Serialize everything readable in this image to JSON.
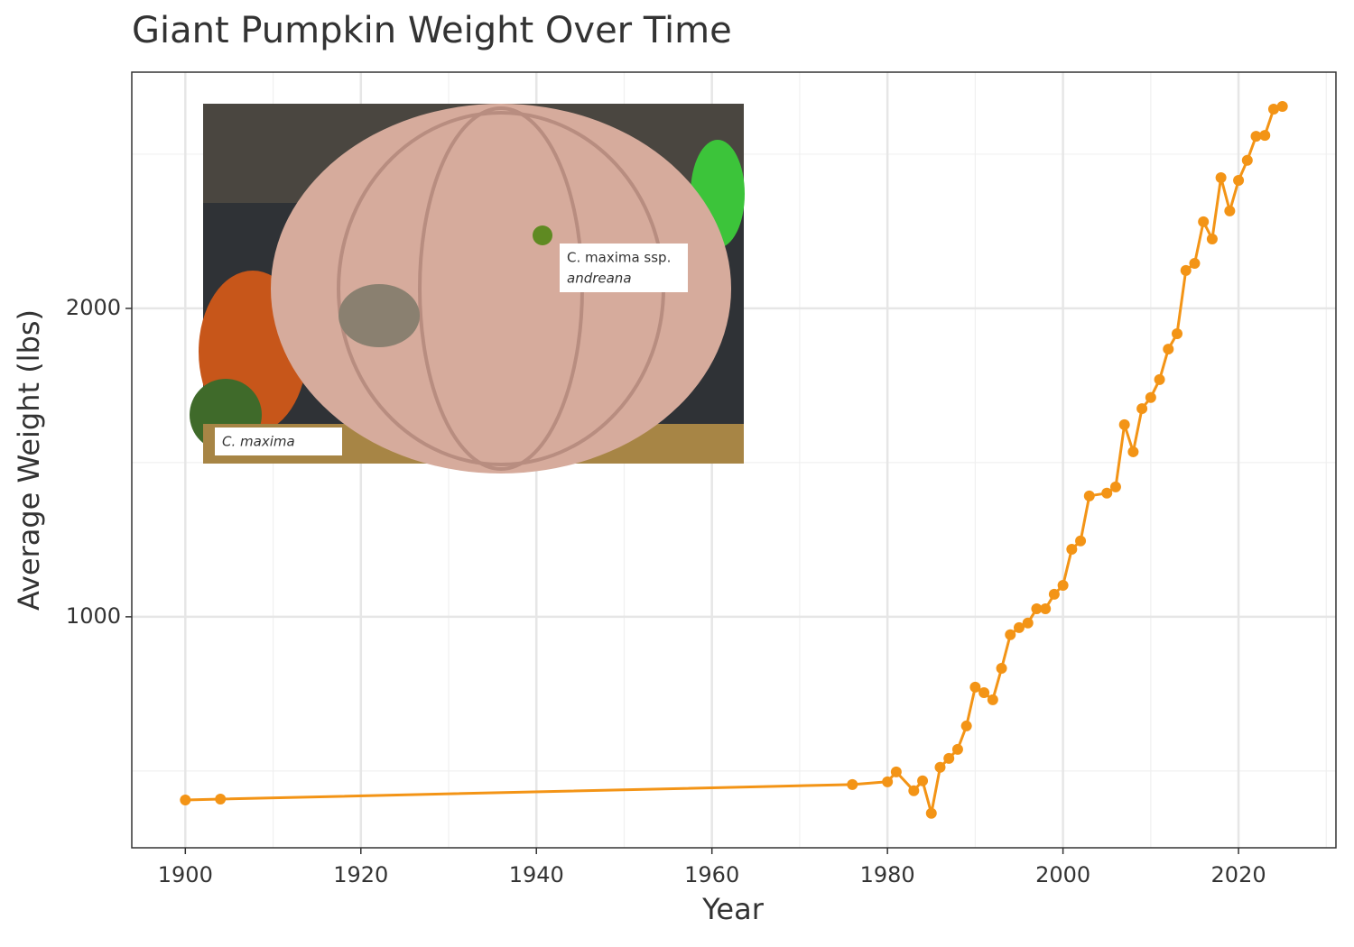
{
  "chart_data": {
    "type": "line",
    "title": "Giant Pumpkin Weight Over Time",
    "x_label": "Year",
    "y_label": "Average Weight (lbs)",
    "x": [
      1900,
      1904,
      1976,
      1980,
      1981,
      1983,
      1984,
      1985,
      1986,
      1987,
      1988,
      1989,
      1990,
      1991,
      1992,
      1993,
      1994,
      1995,
      1996,
      1997,
      1998,
      1999,
      2000,
      2001,
      2002,
      2003,
      2005,
      2006,
      2007,
      2008,
      2009,
      2010,
      2011,
      2012,
      2013,
      2014,
      2015,
      2016,
      2017,
      2018,
      2019,
      2020,
      2021,
      2022,
      2023,
      2024,
      2025
    ],
    "values": [
      406,
      409,
      456,
      465,
      497,
      436,
      468,
      363,
      512,
      541,
      570,
      646,
      772,
      754,
      731,
      833,
      942,
      965,
      980,
      1026,
      1026,
      1073,
      1102,
      1219,
      1246,
      1392,
      1401,
      1421,
      1623,
      1535,
      1675,
      1711,
      1769,
      1868,
      1918,
      2123,
      2146,
      2281,
      2225,
      2424,
      2316,
      2415,
      2480,
      2558,
      2561,
      2646,
      2655
    ],
    "color": "#f39416",
    "xlim": [
      1893.9,
      2031.1
    ],
    "xticks": [
      1900,
      1920,
      1940,
      1960,
      1980,
      2000,
      2020
    ],
    "xminorticks": [
      1910,
      1930,
      1950,
      1970,
      1990,
      2010,
      2030
    ],
    "ylim": [
      251,
      2766
    ],
    "yticks": [
      1000,
      2000
    ],
    "yminorticks": [
      500,
      1500,
      2500
    ],
    "grid": true,
    "inset_labels": {
      "subspecies": [
        "C. maxima ssp.",
        "andreana"
      ],
      "species": "C. maxima"
    }
  }
}
